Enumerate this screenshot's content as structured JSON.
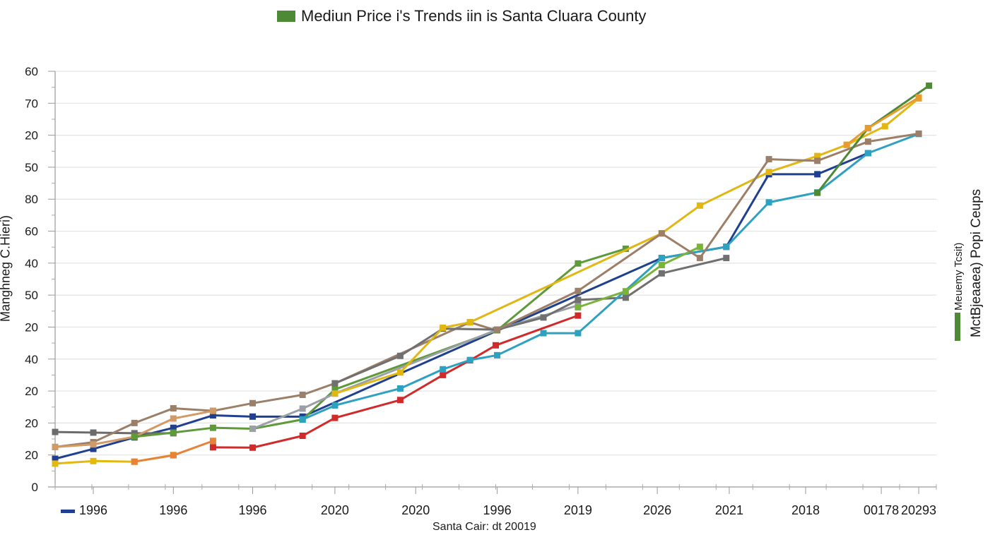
{
  "chart_data": {
    "type": "line",
    "title": "Mediun Price i's Trends iin is Santa Cluara County",
    "title_legend_color": "#4e8a35",
    "ylabel": "Manghneg C.Hieri)",
    "xlabel": "Santa Cair: dt 20019",
    "right_labels": [
      "Meuemy Tcsit)",
      "MctBjeaaea) Popi Ceups"
    ],
    "right_legend_color": "#4e8a35",
    "bottom_legend_color": "#1f3f8f",
    "grid": true,
    "y_scale_note": "y values are in gridline units from bottom (0) to top (13); printed tick labels are shown as-is",
    "ylim": [
      0,
      13
    ],
    "y_ticks": [
      {
        "pos": 0,
        "label": "0"
      },
      {
        "pos": 1,
        "label": "20"
      },
      {
        "pos": 2,
        "label": "20"
      },
      {
        "pos": 3,
        "label": "20"
      },
      {
        "pos": 4,
        "label": "40"
      },
      {
        "pos": 5,
        "label": "20"
      },
      {
        "pos": 6,
        "label": "50"
      },
      {
        "pos": 7,
        "label": "40"
      },
      {
        "pos": 8,
        "label": "60"
      },
      {
        "pos": 9,
        "label": "80"
      },
      {
        "pos": 10,
        "label": "50"
      },
      {
        "pos": 11,
        "label": "20"
      },
      {
        "pos": 12,
        "label": "70"
      },
      {
        "pos": 13,
        "label": "60"
      }
    ],
    "xlim": [
      0,
      12
    ],
    "x_ticks": [
      {
        "pos": 0.52,
        "label": "1996"
      },
      {
        "pos": 1.61,
        "label": "1996"
      },
      {
        "pos": 2.69,
        "label": "1996"
      },
      {
        "pos": 3.81,
        "label": "2020"
      },
      {
        "pos": 4.91,
        "label": "2020"
      },
      {
        "pos": 6.02,
        "label": "1996"
      },
      {
        "pos": 7.12,
        "label": "2019"
      },
      {
        "pos": 8.2,
        "label": "2026"
      },
      {
        "pos": 9.18,
        "label": "2021"
      },
      {
        "pos": 10.22,
        "label": "2018"
      },
      {
        "pos": 11.25,
        "label": "00178"
      },
      {
        "pos": 11.76,
        "label": "20293"
      }
    ],
    "series": [
      {
        "name": "navy",
        "color": "#1f3f8f",
        "points": [
          [
            0,
            0.88
          ],
          [
            0.52,
            1.19
          ],
          [
            1.08,
            1.55
          ],
          [
            1.61,
            1.85
          ],
          [
            2.15,
            2.24
          ],
          [
            2.69,
            2.2
          ],
          [
            3.37,
            2.2
          ],
          [
            8.26,
            7.16
          ],
          [
            9.14,
            7.51
          ],
          [
            9.72,
            9.78
          ],
          [
            10.38,
            9.78
          ],
          [
            11.07,
            10.44
          ]
        ]
      },
      {
        "name": "dark-gray",
        "color": "#6b6b6b",
        "points": [
          [
            0,
            1.72
          ],
          [
            0.52,
            1.7
          ],
          [
            1.08,
            1.68
          ],
          [
            1.61,
            1.68
          ]
        ]
      },
      {
        "name": "tan",
        "color": "#9c7f68",
        "points": [
          [
            0,
            1.25
          ],
          [
            0.52,
            1.4
          ],
          [
            1.08,
            2.0
          ],
          [
            1.61,
            2.46
          ],
          [
            2.15,
            2.38
          ],
          [
            2.69,
            2.62
          ],
          [
            3.37,
            2.88
          ],
          [
            3.81,
            3.24
          ],
          [
            5.65,
            5.15
          ],
          [
            6.0,
            4.9
          ]
        ]
      },
      {
        "name": "light-orange",
        "color": "#d19a66",
        "points": [
          [
            0,
            1.25
          ],
          [
            0.52,
            1.33
          ],
          [
            1.08,
            1.57
          ],
          [
            1.61,
            2.14
          ],
          [
            2.15,
            2.38
          ]
        ]
      },
      {
        "name": "yellow",
        "color": "#e3b90f",
        "points": [
          [
            0,
            0.73
          ],
          [
            0.52,
            0.81
          ],
          [
            1.08,
            0.79
          ],
          [
            1.61,
            1.0
          ]
        ]
      },
      {
        "name": "orange",
        "color": "#e8823a",
        "points": [
          [
            1.08,
            0.79
          ],
          [
            1.61,
            0.99
          ],
          [
            2.15,
            1.44
          ]
        ]
      },
      {
        "name": "red",
        "color": "#d12a2a",
        "points": [
          [
            2.15,
            1.24
          ],
          [
            2.69,
            1.23
          ],
          [
            3.37,
            1.6
          ],
          [
            3.81,
            2.16
          ],
          [
            4.7,
            2.72
          ],
          [
            5.28,
            3.5
          ],
          [
            5.65,
            3.96
          ],
          [
            6.0,
            4.43
          ],
          [
            7.12,
            5.36
          ]
        ]
      },
      {
        "name": "green",
        "color": "#5e9a3a",
        "points": [
          [
            1.08,
            1.57
          ],
          [
            1.61,
            1.7
          ],
          [
            2.15,
            1.85
          ],
          [
            2.69,
            1.82
          ],
          [
            3.37,
            2.11
          ],
          [
            3.81,
            3.05
          ],
          [
            6.02,
            4.9
          ],
          [
            7.12,
            6.99
          ],
          [
            7.77,
            7.45
          ]
        ]
      },
      {
        "name": "light-gray",
        "color": "#9aa0a6",
        "points": [
          [
            2.69,
            1.82
          ],
          [
            3.37,
            2.45
          ],
          [
            3.81,
            2.92
          ],
          [
            6.02,
            4.92
          ],
          [
            7.12,
            5.68
          ]
        ]
      },
      {
        "name": "gray-mid",
        "color": "#707070",
        "points": [
          [
            3.81,
            3.24
          ],
          [
            4.7,
            4.1
          ],
          [
            5.28,
            4.95
          ],
          [
            6.02,
            4.92
          ],
          [
            6.65,
            5.3
          ],
          [
            7.12,
            5.85
          ],
          [
            7.77,
            5.92
          ],
          [
            8.26,
            6.68
          ],
          [
            9.14,
            7.16
          ]
        ]
      },
      {
        "name": "yellow-gold",
        "color": "#e0b713",
        "points": [
          [
            3.81,
            2.92
          ],
          [
            4.7,
            3.58
          ],
          [
            5.28,
            4.98
          ],
          [
            5.65,
            5.15
          ],
          [
            8.26,
            7.93
          ],
          [
            8.78,
            8.8
          ],
          [
            9.72,
            9.85
          ],
          [
            10.38,
            10.35
          ],
          [
            10.78,
            10.7
          ],
          [
            11.3,
            11.28
          ],
          [
            11.76,
            12.15
          ]
        ]
      },
      {
        "name": "teal",
        "color": "#2ea0c0",
        "points": [
          [
            3.37,
            2.11
          ],
          [
            3.81,
            2.55
          ],
          [
            4.7,
            3.08
          ],
          [
            5.28,
            3.68
          ],
          [
            5.65,
            3.97
          ],
          [
            6.02,
            4.12
          ],
          [
            6.65,
            4.81
          ],
          [
            7.12,
            4.81
          ],
          [
            8.26,
            7.16
          ],
          [
            9.14,
            7.51
          ],
          [
            9.72,
            8.9
          ],
          [
            10.38,
            9.21
          ],
          [
            11.07,
            10.44
          ],
          [
            11.76,
            11.04
          ]
        ]
      },
      {
        "name": "lime",
        "color": "#7ab33a",
        "points": [
          [
            7.12,
            5.62
          ],
          [
            7.77,
            6.12
          ],
          [
            8.26,
            6.94
          ],
          [
            8.78,
            7.51
          ]
        ]
      },
      {
        "name": "brown-late",
        "color": "#9c7f68",
        "points": [
          [
            6.02,
            4.92
          ],
          [
            7.12,
            6.13
          ],
          [
            8.26,
            7.93
          ],
          [
            8.78,
            7.16
          ],
          [
            9.72,
            10.25
          ],
          [
            10.38,
            10.2
          ],
          [
            11.07,
            10.8
          ],
          [
            11.76,
            11.05
          ]
        ]
      },
      {
        "name": "green-late",
        "color": "#4e8a35",
        "points": [
          [
            10.38,
            9.2
          ],
          [
            11.07,
            11.22
          ],
          [
            11.9,
            12.55
          ]
        ]
      },
      {
        "name": "orange-late",
        "color": "#e89b2f",
        "points": [
          [
            10.78,
            10.7
          ],
          [
            11.07,
            11.22
          ],
          [
            11.76,
            12.18
          ]
        ]
      }
    ]
  }
}
